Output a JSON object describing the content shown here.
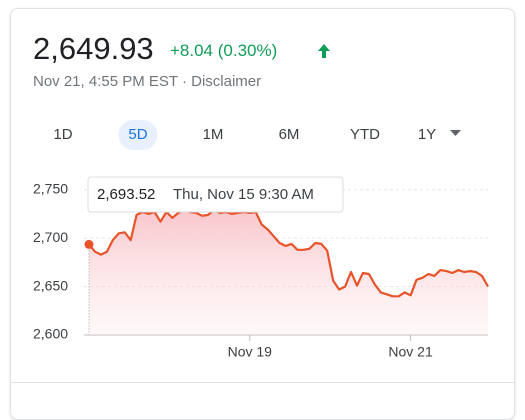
{
  "header": {
    "price": "2,649.93",
    "change": "+8.04 (0.30%)",
    "timestamp": "Nov 21, 4:55 PM EST · Disclaimer"
  },
  "tabs": [
    "1D",
    "5D",
    "1M",
    "6M",
    "YTD",
    "1Y"
  ],
  "selected_tab": 1,
  "chart_data": {
    "type": "line",
    "series": [
      {
        "color": "#e8542a",
        "values": [
          2693.52,
          2686,
          2683,
          2686,
          2698,
          2705,
          2706,
          2698,
          2724,
          2727,
          2725,
          2727,
          2717,
          2727,
          2721,
          2726,
          2729,
          2727,
          2726,
          2723,
          2724,
          2729,
          2726,
          2727,
          2725,
          2726,
          2727,
          2726,
          2727,
          2714,
          2709,
          2702,
          2695,
          2692,
          2694,
          2688,
          2688,
          2689,
          2695,
          2694,
          2687,
          2656,
          2647,
          2650,
          2665,
          2651,
          2664,
          2663,
          2652,
          2644,
          2642,
          2640,
          2640,
          2644,
          2641,
          2657,
          2659,
          2663,
          2661,
          2667,
          2666,
          2664,
          2667,
          2665,
          2666,
          2665,
          2661,
          2650
        ]
      }
    ],
    "xlim": [
      0,
      67
    ],
    "xticks": [
      {
        "value": 27,
        "label": "Nov 19"
      },
      {
        "value": 54,
        "label": "Nov 21"
      }
    ],
    "ylim": [
      2600,
      2760
    ],
    "yticks": [
      {
        "value": 2600,
        "label": "2,600"
      },
      {
        "value": 2650,
        "label": "2,650"
      },
      {
        "value": 2700,
        "label": "2,700"
      },
      {
        "value": 2750,
        "label": "2,750"
      }
    ],
    "grid": true,
    "tooltip": {
      "value": "2,693.52",
      "date": "Thu, Nov 15 9:30 AM"
    }
  }
}
